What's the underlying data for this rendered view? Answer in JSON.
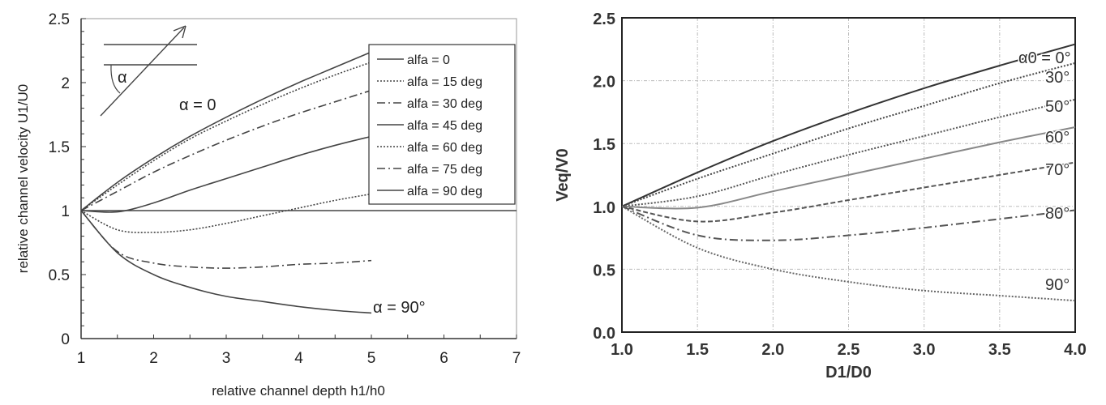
{
  "chart_data": [
    {
      "type": "line",
      "title": "",
      "xlabel": "relative channel depth h1/h0",
      "ylabel": "relative channel velocity U1/U0",
      "xlim": [
        1,
        7
      ],
      "ylim": [
        0,
        2.5
      ],
      "xticks": [
        "1",
        "2",
        "3",
        "4",
        "5",
        "6",
        "7"
      ],
      "yticks": [
        "0",
        "0.5",
        "1",
        "1.5",
        "2",
        "2.5"
      ],
      "grid": false,
      "legend_position": "top-right",
      "x": [
        1,
        1.5,
        2,
        2.5,
        3,
        3.5,
        4,
        4.5,
        5
      ],
      "series": [
        {
          "name": "alfa = 0",
          "style": "solid",
          "values": [
            1,
            1.22,
            1.41,
            1.58,
            1.73,
            1.87,
            2.0,
            2.12,
            2.24
          ]
        },
        {
          "name": "alfa = 15 deg",
          "style": "dotted",
          "values": [
            1,
            1.2,
            1.39,
            1.56,
            1.7,
            1.83,
            1.95,
            2.06,
            2.16
          ]
        },
        {
          "name": "alfa = 30 deg",
          "style": "dashdot",
          "values": [
            1,
            1.15,
            1.3,
            1.43,
            1.55,
            1.66,
            1.76,
            1.85,
            1.94
          ]
        },
        {
          "name": "alfa = 45 deg",
          "style": "solid",
          "values": [
            1,
            0.99,
            1.06,
            1.16,
            1.25,
            1.34,
            1.43,
            1.51,
            1.58
          ]
        },
        {
          "name": "alfa = 60 deg",
          "style": "dotted",
          "values": [
            1,
            0.85,
            0.83,
            0.85,
            0.9,
            0.96,
            1.02,
            1.08,
            1.13
          ]
        },
        {
          "name": "alfa = 75 deg",
          "style": "dashdot",
          "values": [
            1,
            0.68,
            0.59,
            0.56,
            0.55,
            0.56,
            0.58,
            0.59,
            0.61
          ]
        },
        {
          "name": "alfa = 90 deg",
          "style": "solid",
          "values": [
            1,
            0.67,
            0.5,
            0.4,
            0.33,
            0.29,
            0.25,
            0.22,
            0.2
          ]
        }
      ],
      "reference_line": {
        "y": 1,
        "x_range": [
          1,
          7
        ]
      },
      "annotations": [
        "α = 0",
        "α = 90°",
        "α"
      ]
    },
    {
      "type": "line",
      "title": "",
      "xlabel": "D1/D0",
      "ylabel": "Veq/V0",
      "xlim": [
        1.0,
        4.0
      ],
      "ylim": [
        0.0,
        2.5
      ],
      "xticks": [
        "1.0",
        "1.5",
        "2.0",
        "2.5",
        "3.0",
        "3.5",
        "4.0"
      ],
      "yticks": [
        "0.0",
        "0.5",
        "1.0",
        "1.5",
        "2.0",
        "2.5"
      ],
      "grid": true,
      "x": [
        1.0,
        1.5,
        2.0,
        2.5,
        3.0,
        3.5,
        4.0
      ],
      "series": [
        {
          "name": "α0 = 0°",
          "style": "solid",
          "values": [
            1,
            1.27,
            1.52,
            1.74,
            1.94,
            2.12,
            2.29
          ]
        },
        {
          "name": "30°",
          "style": "dotted",
          "values": [
            1,
            1.22,
            1.42,
            1.62,
            1.8,
            1.98,
            2.14
          ]
        },
        {
          "name": "50°",
          "style": "dotted",
          "values": [
            1,
            1.08,
            1.25,
            1.41,
            1.56,
            1.71,
            1.85
          ]
        },
        {
          "name": "60°",
          "style": "solid-light",
          "values": [
            1,
            0.99,
            1.12,
            1.25,
            1.38,
            1.51,
            1.63
          ]
        },
        {
          "name": "70°",
          "style": "dashed",
          "values": [
            1,
            0.88,
            0.95,
            1.05,
            1.15,
            1.25,
            1.35
          ]
        },
        {
          "name": "80°",
          "style": "dashdot",
          "values": [
            1,
            0.77,
            0.73,
            0.77,
            0.83,
            0.9,
            0.97
          ]
        },
        {
          "name": "90°",
          "style": "dotted",
          "values": [
            1,
            0.67,
            0.5,
            0.4,
            0.33,
            0.29,
            0.25
          ]
        }
      ]
    }
  ],
  "colors": {
    "line": "#444444",
    "grid": "#bbbbbb",
    "axis": "#333333"
  }
}
